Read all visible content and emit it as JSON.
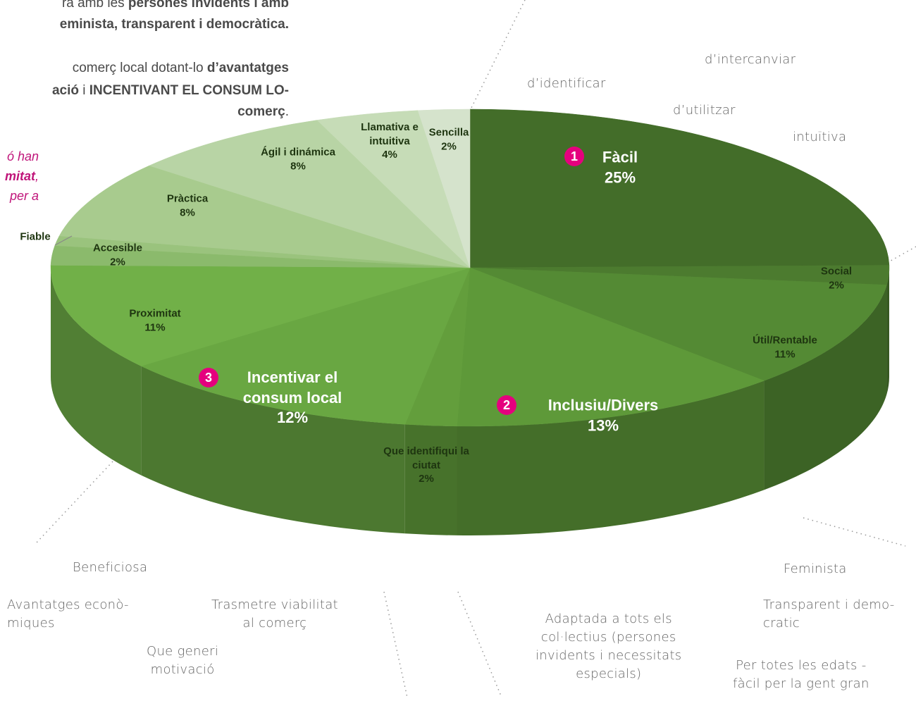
{
  "intro": {
    "lines": [
      [
        {
          "text": "ra amb les ",
          "bold": false
        },
        {
          "text": "persones invidents i amb",
          "bold": true
        }
      ],
      [
        {
          "text": "eminista, transparent i democràtica.",
          "bold": true
        }
      ],
      [
        {
          "text": "comerç local dotant-lo ",
          "bold": false
        },
        {
          "text": "d’avantatges",
          "bold": true
        }
      ],
      [
        {
          "text": "ació",
          "bold": true
        },
        {
          "text": " i ",
          "bold": false
        },
        {
          "text": "INCENTIVANT EL CONSUM LO-",
          "bold": true
        }
      ],
      [
        {
          "text": "comerç",
          "bold": true
        },
        {
          "text": ".",
          "bold": false
        }
      ]
    ],
    "side_note": [
      [
        {
          "text": "ó han",
          "bold": false
        }
      ],
      [
        {
          "text": "mitat",
          "bold": true
        },
        {
          "text": ",",
          "bold": false
        }
      ],
      [
        {
          "text": "per a",
          "bold": false
        }
      ]
    ]
  },
  "chart_data": {
    "type": "pie3d",
    "categories": [
      "Fàcil",
      "Social",
      "Útil/Rentable",
      "Inclusiu/Divers",
      "Que identifiqui la ciutat",
      "Incentivar el consum local",
      "Proximitat",
      "Accesible",
      "Fiable",
      "Pràctica",
      "Ágil i dinámica",
      "Llamativa e intuitiva",
      "Sencilla"
    ],
    "values": [
      25,
      2,
      11,
      13,
      2,
      12,
      11,
      2,
      1,
      8,
      8,
      4,
      2
    ],
    "value_labels": [
      "25%",
      "2%",
      "11%",
      "13%",
      "2%",
      "12%",
      "11%",
      "2%",
      null,
      "8%",
      "8%",
      "4%",
      "2%"
    ],
    "colors": [
      "#436d29",
      "#4c7b2f",
      "#548a34",
      "#5e9939",
      "#639e3c",
      "#69a742",
      "#71b048",
      "#8bba6c",
      "#9ac37d",
      "#a8cb8e",
      "#b8d4a5",
      "#c6dcb7",
      "#d5e3cc"
    ],
    "ranks": [
      {
        "index": 0,
        "label": "1"
      },
      {
        "index": 3,
        "label": "2"
      },
      {
        "index": 5,
        "label": "3"
      }
    ]
  },
  "annotations": [
    "d’intercanviar",
    "d’identificar",
    "d’utilitzar",
    "intuïtiva",
    "Beneficiosa",
    "Avantatges econò-\nmiques",
    "Trasmetre viabilitat\nal comerç",
    "Que generi\nmotivació",
    "Adaptada a tots els\ncol·lectius (persones\ninvidents i necessitats\nespecials)",
    "Feminista",
    "Transparent i demo-\ncratic",
    "Per totes les edats -\nfàcil per la gent gran"
  ]
}
